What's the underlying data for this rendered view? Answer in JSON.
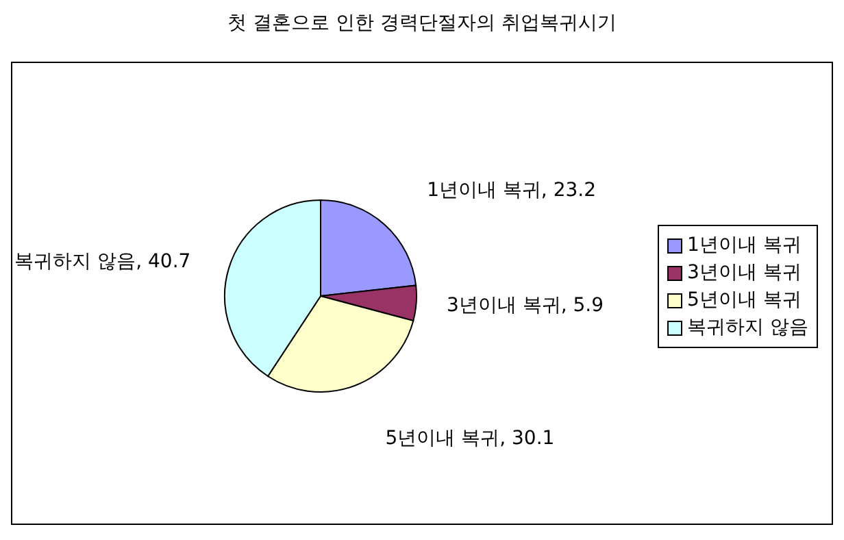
{
  "chart_data": {
    "type": "pie",
    "title": "첫 결혼으로 인한 경력단절자의 취업복귀시기",
    "categories": [
      "1년이내 복귀",
      "3년이내 복귀",
      "5년이내 복귀",
      "복귀하지 않음"
    ],
    "values": [
      23.2,
      5.9,
      30.1,
      40.7
    ],
    "colors": [
      "#9999ff",
      "#993366",
      "#ffffcc",
      "#ccffff"
    ],
    "value_labels": [
      "1년이내 복귀, 23.2",
      "3년이내 복귀, 5.9",
      "5년이내 복귀, 30.1",
      "복귀하지 않음, 40.7"
    ],
    "legend": "right"
  }
}
